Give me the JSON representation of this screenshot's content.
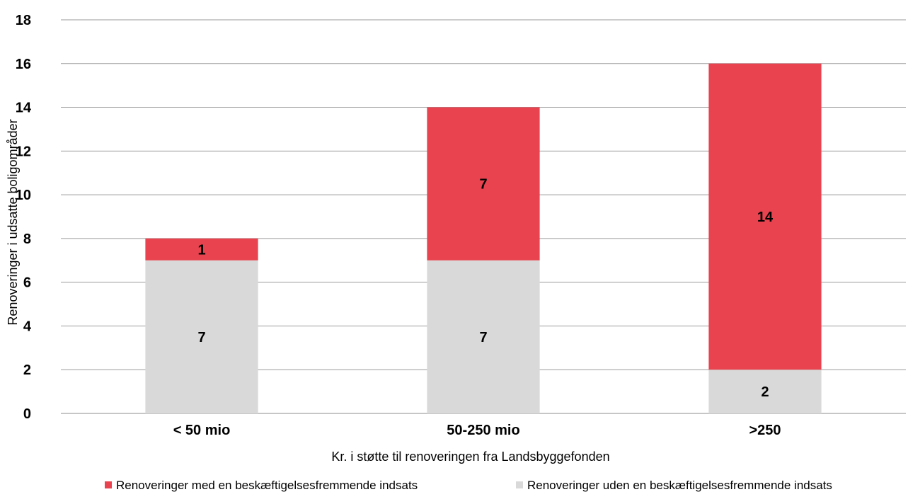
{
  "chart_data": {
    "type": "bar",
    "stacked": true,
    "title": "",
    "xlabel": "Kr. i støtte til renoveringen fra Landsbyggefonden",
    "ylabel": "Renoveringer i udsatte boligområder",
    "categories": [
      "< 50 mio",
      "50-250 mio",
      ">250"
    ],
    "series": [
      {
        "name": "Renoveringer uden en beskæftigelsesfremmende indsats",
        "values": [
          7,
          7,
          2
        ],
        "color": "#d9d9d9"
      },
      {
        "name": "Renoveringer med en beskæftigelsesfremmende indsats",
        "values": [
          1,
          7,
          14
        ],
        "color": "#e8434f"
      }
    ],
    "ylim": [
      0,
      18
    ],
    "yticks": [
      0,
      2,
      4,
      6,
      8,
      10,
      12,
      14,
      16,
      18
    ],
    "grid": true,
    "legend_position": "bottom",
    "legend_order": [
      1,
      0
    ]
  }
}
